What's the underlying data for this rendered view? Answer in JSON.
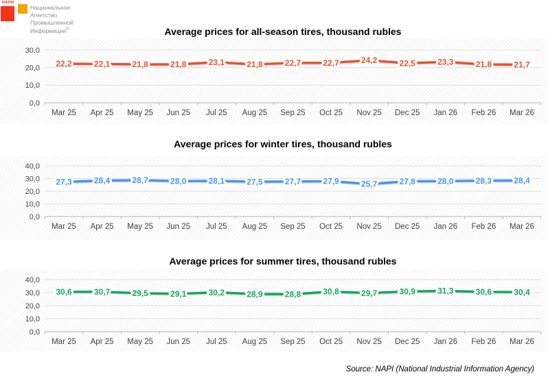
{
  "logo": {
    "acronym": "НАПИ",
    "name_lines": [
      "Национальное",
      "Агентство",
      "Промышленной",
      "Информации"
    ],
    "registered_mark": "®"
  },
  "colors": {
    "all_season": "#E8512C",
    "winter": "#4496EC",
    "summer": "#16A65A",
    "logo_red": "#F5331B",
    "logo_orange": "#F5A50A",
    "grid": "#DCDCDC",
    "axis": "#B3B3B3",
    "tick_text": "#404040",
    "shadow": "#C4C4C4"
  },
  "source_note": "Source: NAPI (National Industrial Information Agency)",
  "chart_data": [
    {
      "type": "line",
      "title": "Average prices for all-season tires, thousand rubles",
      "categories": [
        "Mar 25",
        "Apr 25",
        "May 25",
        "Jun 25",
        "Jul 25",
        "Aug 25",
        "Sep 25",
        "Oct 25",
        "Nov 25",
        "Dec 25",
        "Jan 26",
        "Feb 26",
        "Mar 26"
      ],
      "values": [
        22.2,
        22.1,
        21.8,
        21.8,
        23.1,
        21.8,
        22.7,
        22.7,
        24.2,
        22.5,
        23.3,
        21.8,
        21.7
      ],
      "point_labels": [
        "22,2",
        "22,1",
        "21,8",
        "21,8",
        "23,1",
        "21,8",
        "22,7",
        "22,7",
        "24,2",
        "22,5",
        "23,3",
        "21,8",
        "21,7"
      ],
      "ylim": [
        0,
        30
      ],
      "yticks": [
        "0,0",
        "10,0",
        "20,0",
        "30,0"
      ],
      "grid": true,
      "legend": "none",
      "xlabel": "",
      "ylabel": "",
      "series_color": "#E8512C"
    },
    {
      "type": "line",
      "title": "Average prices for winter tires, thousand rubles",
      "categories": [
        "Mar 25",
        "Apr 25",
        "May 25",
        "Jun 25",
        "Jul 25",
        "Aug 25",
        "Sep 25",
        "Oct 25",
        "Nov 25",
        "Dec 25",
        "Jan 26",
        "Feb 26",
        "Mar 26"
      ],
      "values": [
        27.3,
        28.4,
        28.7,
        28.0,
        28.1,
        27.5,
        27.7,
        27.9,
        25.7,
        27.8,
        28.0,
        28.3,
        28.4
      ],
      "point_labels": [
        "27,3",
        "28,4",
        "28,7",
        "28,0",
        "28,1",
        "27,5",
        "27,7",
        "27,9",
        "25,7",
        "27,8",
        "28,0",
        "28,3",
        "28,4"
      ],
      "ylim": [
        0,
        40
      ],
      "yticks": [
        "0,0",
        "10,0",
        "20,0",
        "30,0",
        "40,0"
      ],
      "grid": true,
      "legend": "none",
      "xlabel": "",
      "ylabel": "",
      "series_color": "#4496EC"
    },
    {
      "type": "line",
      "title": "Average prices for summer tires, thousand rubles",
      "categories": [
        "Mar 25",
        "Apr 25",
        "May 25",
        "Jun 25",
        "Jul 25",
        "Aug 25",
        "Sep 25",
        "Oct 25",
        "Nov 25",
        "Dec 25",
        "Jan 26",
        "Feb 26",
        "Mar 26"
      ],
      "values": [
        30.6,
        30.7,
        29.5,
        29.1,
        30.2,
        28.9,
        28.8,
        30.8,
        29.7,
        30.9,
        31.3,
        30.6,
        30.4
      ],
      "point_labels": [
        "30,6",
        "30,7",
        "29,5",
        "29,1",
        "30,2",
        "28,9",
        "28,8",
        "30,8",
        "29,7",
        "30,9",
        "31,3",
        "30,6",
        "30,4"
      ],
      "ylim": [
        0,
        40
      ],
      "yticks": [
        "0,0",
        "10,0",
        "20,0",
        "30,0",
        "40,0"
      ],
      "grid": true,
      "legend": "none",
      "xlabel": "",
      "ylabel": "",
      "series_color": "#16A65A"
    }
  ]
}
